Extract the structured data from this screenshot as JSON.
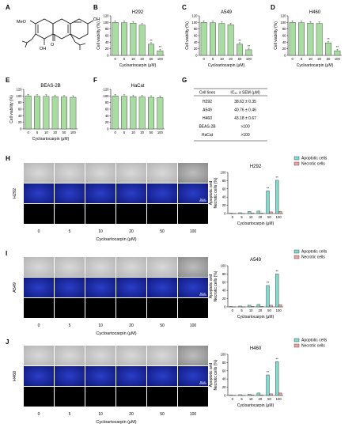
{
  "panel_letters": [
    "A",
    "B",
    "C",
    "D",
    "E",
    "F",
    "G",
    "H",
    "I",
    "J"
  ],
  "structure": {
    "labels": {
      "meo": "MeO",
      "oh_top": "OH",
      "oh_bottom": "OH",
      "o_bottom": "O"
    }
  },
  "viability_common": {
    "ylabel": "Cell viability (%)",
    "xlabel": "Cycloartocarpin (μM)",
    "x": [
      "0",
      "5",
      "10",
      "20",
      "50",
      "100"
    ],
    "yticks": [
      "0",
      "20",
      "40",
      "60",
      "80",
      "100",
      "120"
    ],
    "ylim": [
      0,
      120
    ],
    "bar_color": "#a8dca0"
  },
  "table": {
    "headers": [
      "Cell lines",
      "IC₅₀ ± SEM (μM)"
    ],
    "rows": [
      [
        "H292",
        "38.62  ± 0.35"
      ],
      [
        "A549",
        "40.76 ± 0.46"
      ],
      [
        "H460",
        "43.18 ± 0.67"
      ],
      [
        "BEAS-2B",
        ">100"
      ],
      [
        "HaCat",
        ">100"
      ]
    ]
  },
  "micro_common": {
    "doses": [
      "0",
      "5",
      "10",
      "20",
      "50",
      "100"
    ],
    "xlabel": "Cycloartocarpin (μM)",
    "scale_bar": "50 μm"
  },
  "apoptosis_common": {
    "ylabel1": "Apoptotic and",
    "ylabel2": "Necrotic cells (%)",
    "xlabel": "Cycloartocarpin (μM)",
    "x": [
      "0",
      "5",
      "10",
      "20",
      "50",
      "100"
    ],
    "yticks": [
      "0",
      "20",
      "40",
      "60",
      "80",
      "100"
    ],
    "ylim": [
      0,
      100
    ],
    "legend": [
      {
        "name": "Apoptotic cells",
        "color": "#7fd9cc"
      },
      {
        "name": "Necrotic cells",
        "color": "#f2a0a0"
      }
    ],
    "sig": "**"
  },
  "chart_data": [
    {
      "panel": "B",
      "type": "bar",
      "title": "H292",
      "categories": [
        "0",
        "5",
        "10",
        "20",
        "50",
        "100"
      ],
      "values": [
        100,
        99,
        98,
        92,
        34,
        14
      ],
      "sig": [
        "",
        "",
        "",
        "",
        "**",
        "**"
      ],
      "xlabel": "Cycloartocarpin (μM)",
      "ylabel": "Cell viability (%)",
      "ylim": [
        0,
        120
      ]
    },
    {
      "panel": "C",
      "type": "bar",
      "title": "A549",
      "categories": [
        "0",
        "5",
        "10",
        "20",
        "50",
        "100"
      ],
      "values": [
        100,
        99,
        97,
        93,
        34,
        17
      ],
      "sig": [
        "",
        "",
        "",
        "",
        "**",
        "**"
      ],
      "xlabel": "Cycloartocarpin (μM)",
      "ylabel": "Cell viability (%)",
      "ylim": [
        0,
        120
      ]
    },
    {
      "panel": "D",
      "type": "bar",
      "title": "H460",
      "categories": [
        "0",
        "5",
        "10",
        "20",
        "50",
        "100"
      ],
      "values": [
        100,
        99,
        98,
        97,
        38,
        14
      ],
      "sig": [
        "",
        "",
        "",
        "",
        "**",
        "**"
      ],
      "xlabel": "Cycloartocarpin (μM)",
      "ylabel": "Cell viability (%)",
      "ylim": [
        0,
        120
      ]
    },
    {
      "panel": "E",
      "type": "bar",
      "title": "BEAS-2B",
      "categories": [
        "0",
        "5",
        "10",
        "20",
        "50",
        "100"
      ],
      "values": [
        100,
        99,
        99,
        98,
        97,
        96
      ],
      "sig": [
        "",
        "",
        "",
        "",
        "",
        ""
      ],
      "xlabel": "Cycloartocarpin (μM)",
      "ylabel": "Cell viability (%)",
      "ylim": [
        0,
        120
      ]
    },
    {
      "panel": "F",
      "type": "bar",
      "title": "HaCat",
      "categories": [
        "0",
        "5",
        "10",
        "20",
        "50",
        "100"
      ],
      "values": [
        100,
        99,
        98,
        97,
        96,
        95
      ],
      "sig": [
        "",
        "",
        "",
        "",
        "",
        ""
      ],
      "xlabel": "",
      "ylabel": "",
      "ylim": [
        0,
        120
      ]
    },
    {
      "panel": "H",
      "type": "bar",
      "title": "H292",
      "categories": [
        "0",
        "5",
        "10",
        "20",
        "50",
        "100"
      ],
      "series": [
        {
          "name": "Apoptotic cells",
          "values": [
            1,
            2,
            5,
            6,
            55,
            81
          ]
        },
        {
          "name": "Necrotic cells",
          "values": [
            0,
            0,
            1,
            1,
            4,
            5
          ]
        }
      ],
      "sig": [
        "",
        "",
        "",
        "",
        "**",
        "**"
      ],
      "ylim": [
        0,
        100
      ]
    },
    {
      "panel": "I",
      "type": "bar",
      "title": "A549",
      "categories": [
        "0",
        "5",
        "10",
        "20",
        "50",
        "100"
      ],
      "series": [
        {
          "name": "Apoptotic cells",
          "values": [
            1,
            2,
            4,
            6,
            52,
            80
          ]
        },
        {
          "name": "Necrotic cells",
          "values": [
            0,
            0,
            1,
            1,
            4,
            5
          ]
        }
      ],
      "sig": [
        "",
        "",
        "",
        "",
        "**",
        "**"
      ],
      "ylim": [
        0,
        100
      ]
    },
    {
      "panel": "J",
      "type": "bar",
      "title": "H460",
      "categories": [
        "0",
        "5",
        "10",
        "20",
        "50",
        "100"
      ],
      "series": [
        {
          "name": "Apoptotic cells",
          "values": [
            1,
            2,
            3,
            6,
            50,
            82
          ]
        },
        {
          "name": "Necrotic cells",
          "values": [
            0,
            0,
            1,
            1,
            4,
            6
          ]
        }
      ],
      "sig": [
        "",
        "",
        "",
        "",
        "**",
        "**"
      ],
      "ylim": [
        0,
        100
      ]
    }
  ],
  "micro_panels": [
    {
      "panel": "H",
      "cell_line": "H292"
    },
    {
      "panel": "I",
      "cell_line": "A549"
    },
    {
      "panel": "J",
      "cell_line": "H460"
    }
  ]
}
